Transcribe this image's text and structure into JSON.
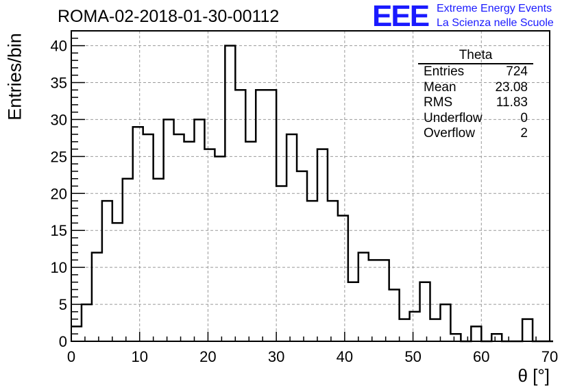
{
  "title": "ROMA-02-2018-01-30-00112",
  "logo": {
    "mark": "EEE",
    "line1": "Extreme Energy Events",
    "line2": "La Scienza nelle Scuole"
  },
  "stats": {
    "title": "Theta",
    "rows": [
      {
        "label": "Entries",
        "value": "724"
      },
      {
        "label": "Mean",
        "value": "23.08"
      },
      {
        "label": "RMS",
        "value": "11.83"
      },
      {
        "label": "Underflow",
        "value": "0"
      },
      {
        "label": "Overflow",
        "value": "2"
      }
    ]
  },
  "chart_data": {
    "type": "histogram",
    "xlabel": "θ [°]",
    "ylabel": "Entries/bin",
    "xlim": [
      0,
      70
    ],
    "ylim": [
      0,
      42
    ],
    "grid": true,
    "bin_width": 1.5,
    "x_ticks": [
      0,
      10,
      20,
      30,
      40,
      50,
      60,
      70
    ],
    "y_ticks": [
      0,
      5,
      10,
      15,
      20,
      25,
      30,
      35,
      40
    ],
    "values": [
      2,
      5,
      12,
      19,
      16,
      22,
      29,
      28,
      22,
      30,
      28,
      27,
      30,
      26,
      25,
      40,
      34,
      27,
      34,
      34,
      21,
      28,
      23,
      19,
      26,
      19,
      17,
      8,
      12,
      11,
      11,
      7,
      3,
      4,
      8,
      3,
      5,
      1,
      0,
      2,
      0,
      1,
      0,
      0,
      3,
      0,
      0
    ]
  }
}
